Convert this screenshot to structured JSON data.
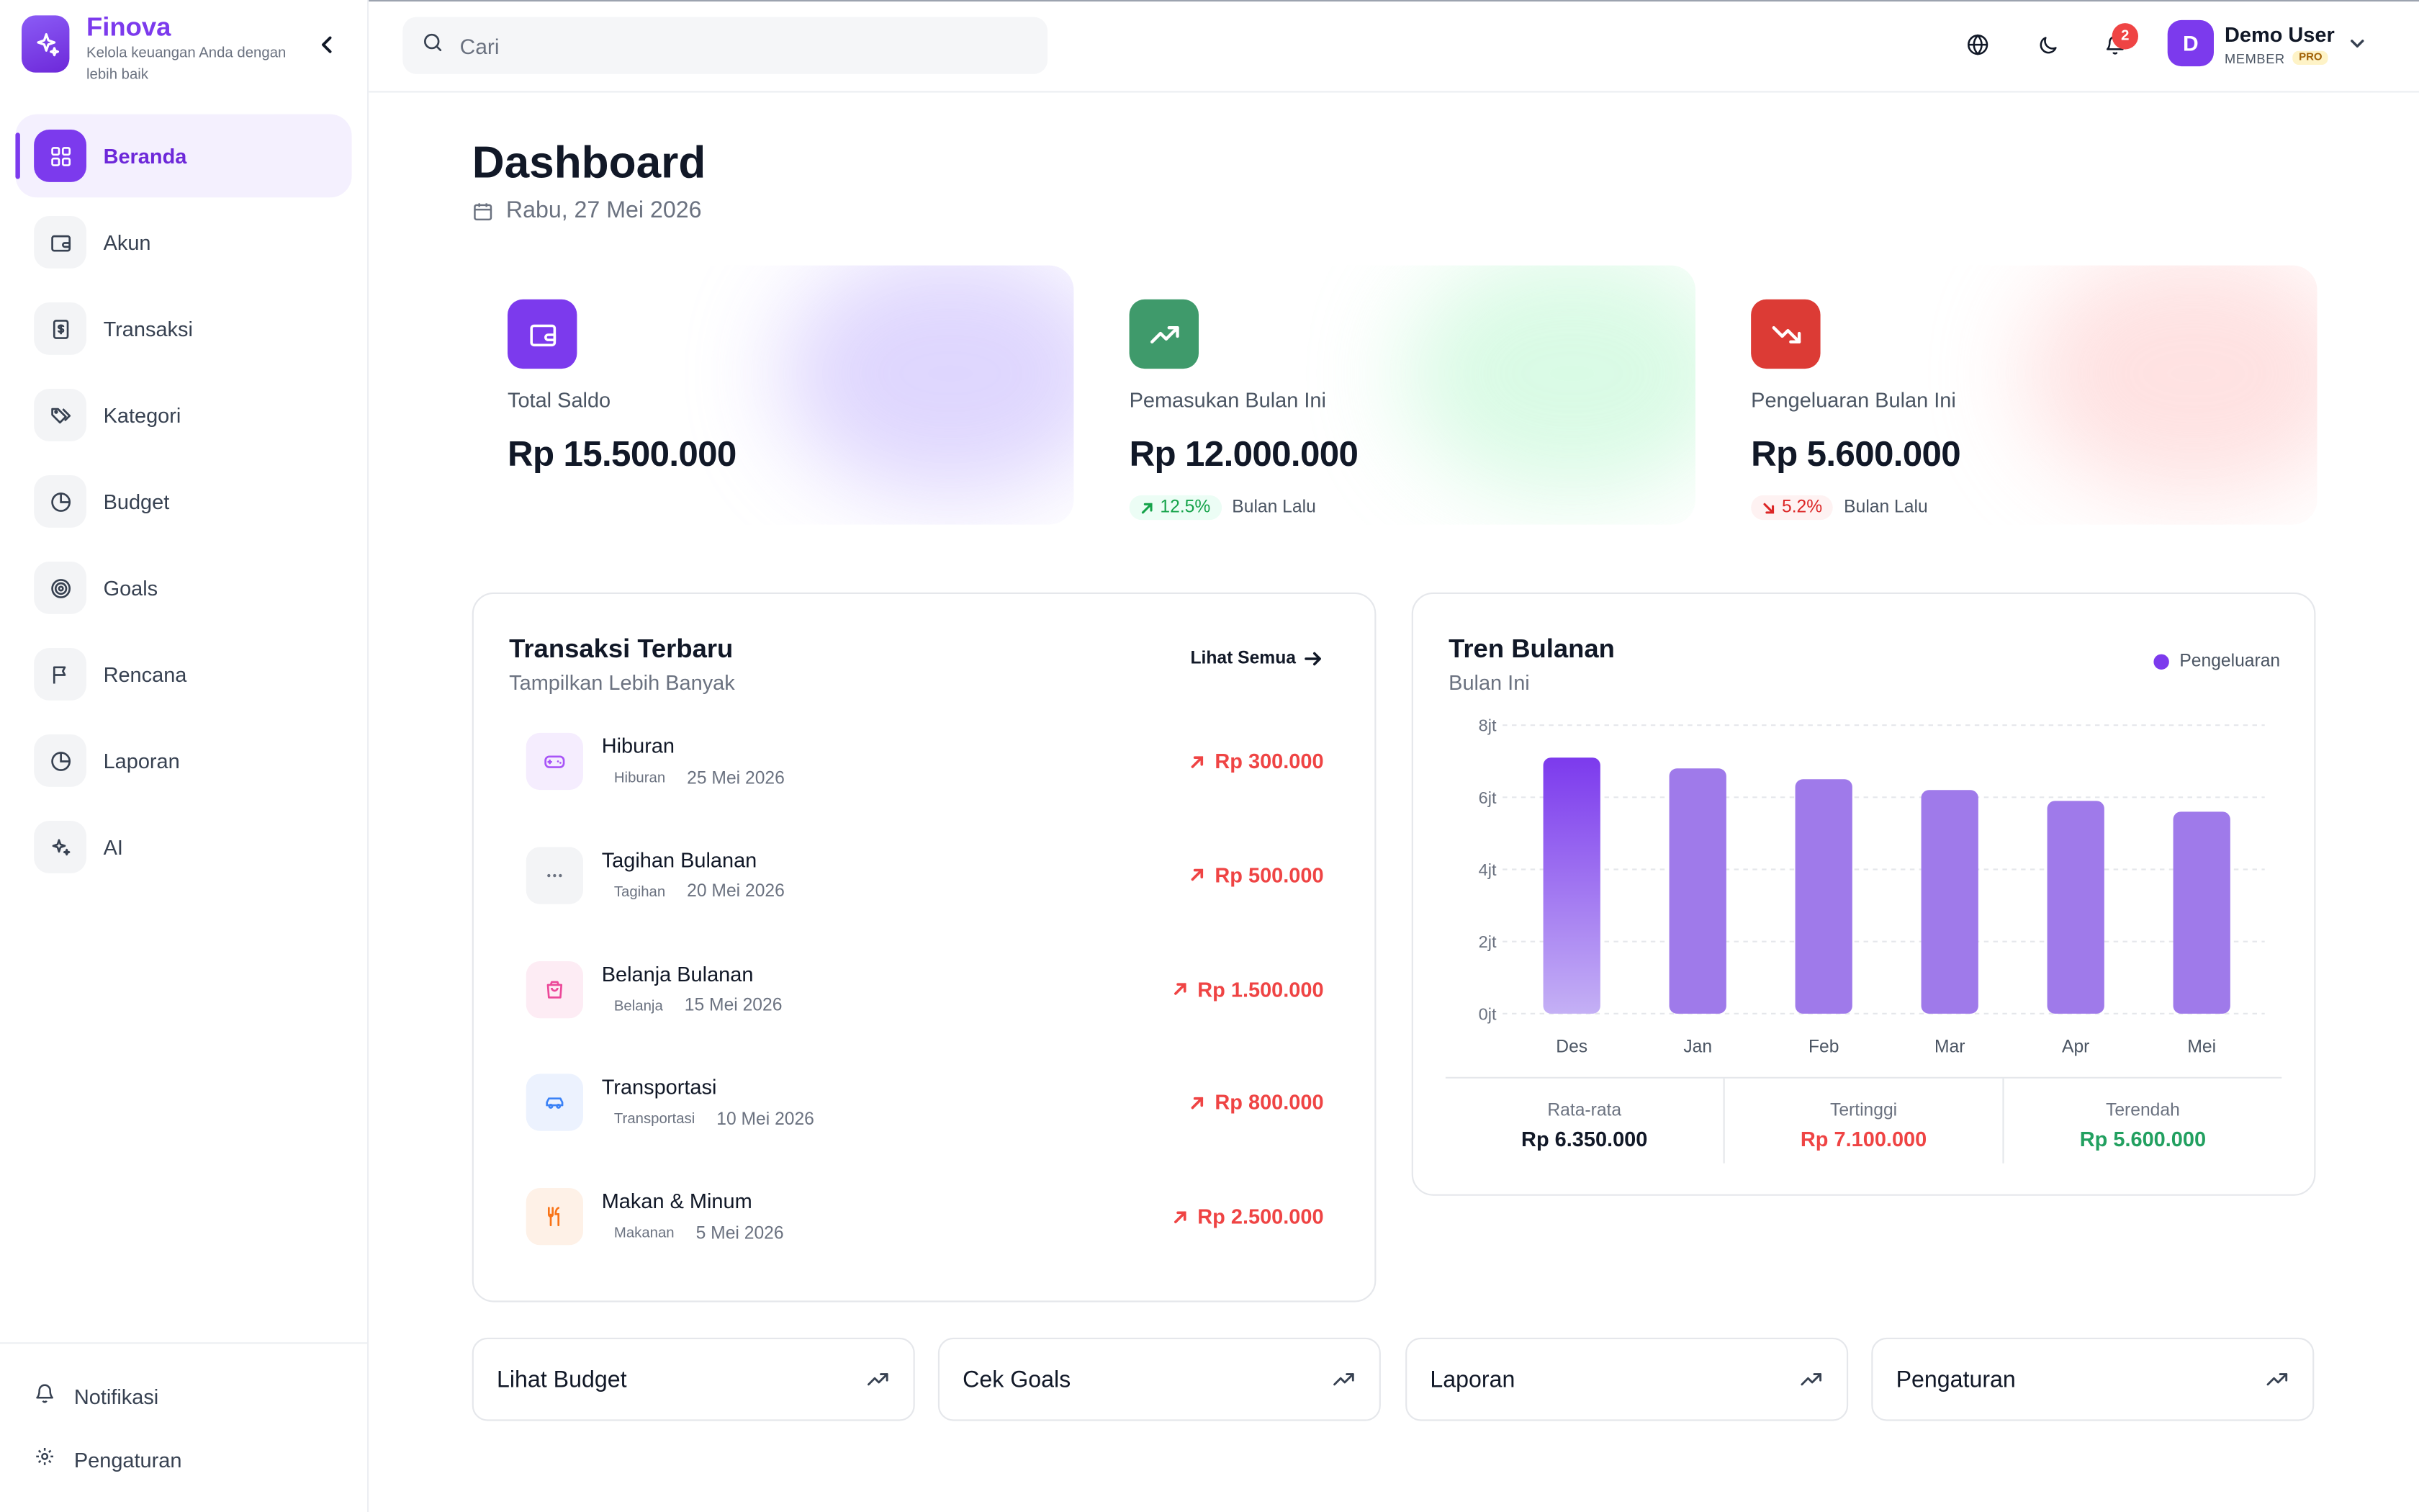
{
  "brand": {
    "name": "Finova",
    "tagline": "Kelola keuangan Anda dengan lebih baik"
  },
  "sidebar": {
    "items": [
      {
        "label": "Beranda",
        "icon": "grid-icon",
        "active": true
      },
      {
        "label": "Akun",
        "icon": "wallet-icon",
        "active": false
      },
      {
        "label": "Transaksi",
        "icon": "receipt-icon",
        "active": false
      },
      {
        "label": "Kategori",
        "icon": "tags-icon",
        "active": false
      },
      {
        "label": "Budget",
        "icon": "pie-chart-icon",
        "active": false
      },
      {
        "label": "Goals",
        "icon": "target-icon",
        "active": false
      },
      {
        "label": "Rencana",
        "icon": "flag-icon",
        "active": false
      },
      {
        "label": "Laporan",
        "icon": "pie-chart-icon",
        "active": false
      },
      {
        "label": "AI",
        "icon": "sparkles-icon",
        "active": false
      }
    ],
    "bottom": [
      {
        "label": "Notifikasi",
        "icon": "bell-icon"
      },
      {
        "label": "Pengaturan",
        "icon": "gear-icon"
      }
    ]
  },
  "topbar": {
    "search_placeholder": "Cari",
    "notification_count": "2",
    "user": {
      "initial": "D",
      "name": "Demo User",
      "role": "MEMBER",
      "plan": "PRO"
    }
  },
  "page": {
    "title": "Dashboard",
    "date": "Rabu, 27 Mei 2026"
  },
  "stats": [
    {
      "label": "Total Saldo",
      "value": "Rp 15.500.000",
      "icon": "wallet-icon",
      "color": "#7c3aed"
    },
    {
      "label": "Pemasukan Bulan Ini",
      "value": "Rp 12.000.000",
      "change": "12.5%",
      "change_note": "Bulan Lalu",
      "trend": "up",
      "icon": "trending-up-icon",
      "color": "#3f9a6b"
    },
    {
      "label": "Pengeluaran Bulan Ini",
      "value": "Rp 5.600.000",
      "change": "5.2%",
      "change_note": "Bulan Lalu",
      "trend": "down",
      "icon": "trending-down-icon",
      "color": "#dc3b35"
    }
  ],
  "recent": {
    "title": "Transaksi Terbaru",
    "subtitle": "Tampilkan Lebih Banyak",
    "see_all": "Lihat Semua",
    "items": [
      {
        "title": "Hiburan",
        "category": "Hiburan",
        "date": "25 Mei 2026",
        "amount": "Rp 300.000",
        "icon": "gamepad-icon",
        "color": "#a855f7"
      },
      {
        "title": "Tagihan Bulanan",
        "category": "Tagihan",
        "date": "20 Mei 2026",
        "amount": "Rp 500.000",
        "icon": "more-icon",
        "color": "#6b7280"
      },
      {
        "title": "Belanja Bulanan",
        "category": "Belanja",
        "date": "15 Mei 2026",
        "amount": "Rp 1.500.000",
        "icon": "shopping-bag-icon",
        "color": "#ec4899"
      },
      {
        "title": "Transportasi",
        "category": "Transportasi",
        "date": "10 Mei 2026",
        "amount": "Rp 800.000",
        "icon": "car-icon",
        "color": "#3b82f6"
      },
      {
        "title": "Makan & Minum",
        "category": "Makanan",
        "date": "5 Mei 2026",
        "amount": "Rp 2.500.000",
        "icon": "utensils-icon",
        "color": "#f97316"
      }
    ]
  },
  "trend": {
    "title": "Tren Bulanan",
    "subtitle": "Bulan Ini",
    "legend": "Pengeluaran",
    "summary": [
      {
        "label": "Rata-rata",
        "value": "Rp 6.350.000",
        "color": "#111827"
      },
      {
        "label": "Tertinggi",
        "value": "Rp 7.100.000",
        "color": "#ef4444"
      },
      {
        "label": "Terendah",
        "value": "Rp 5.600.000",
        "color": "#22a060"
      }
    ]
  },
  "chart_data": {
    "type": "bar",
    "categories": [
      "Des",
      "Jan",
      "Feb",
      "Mar",
      "Apr",
      "Mei"
    ],
    "series": [
      {
        "name": "Pengeluaran",
        "values": [
          7.1,
          6.8,
          6.5,
          6.2,
          5.9,
          5.6
        ]
      }
    ],
    "y_ticks": [
      "0jt",
      "2jt",
      "4jt",
      "6jt",
      "8jt"
    ],
    "ylim": [
      0,
      8
    ],
    "grid": true,
    "legend_position": "top-right",
    "colors": {
      "bar": "#9f7aea",
      "highlight": "#7c3aed"
    }
  },
  "quick_links": [
    {
      "label": "Lihat Budget",
      "icon": "trending-up-icon"
    },
    {
      "label": "Cek Goals",
      "icon": "trending-up-icon"
    },
    {
      "label": "Laporan",
      "icon": "trending-up-icon"
    },
    {
      "label": "Pengaturan",
      "icon": "trending-up-icon"
    }
  ]
}
